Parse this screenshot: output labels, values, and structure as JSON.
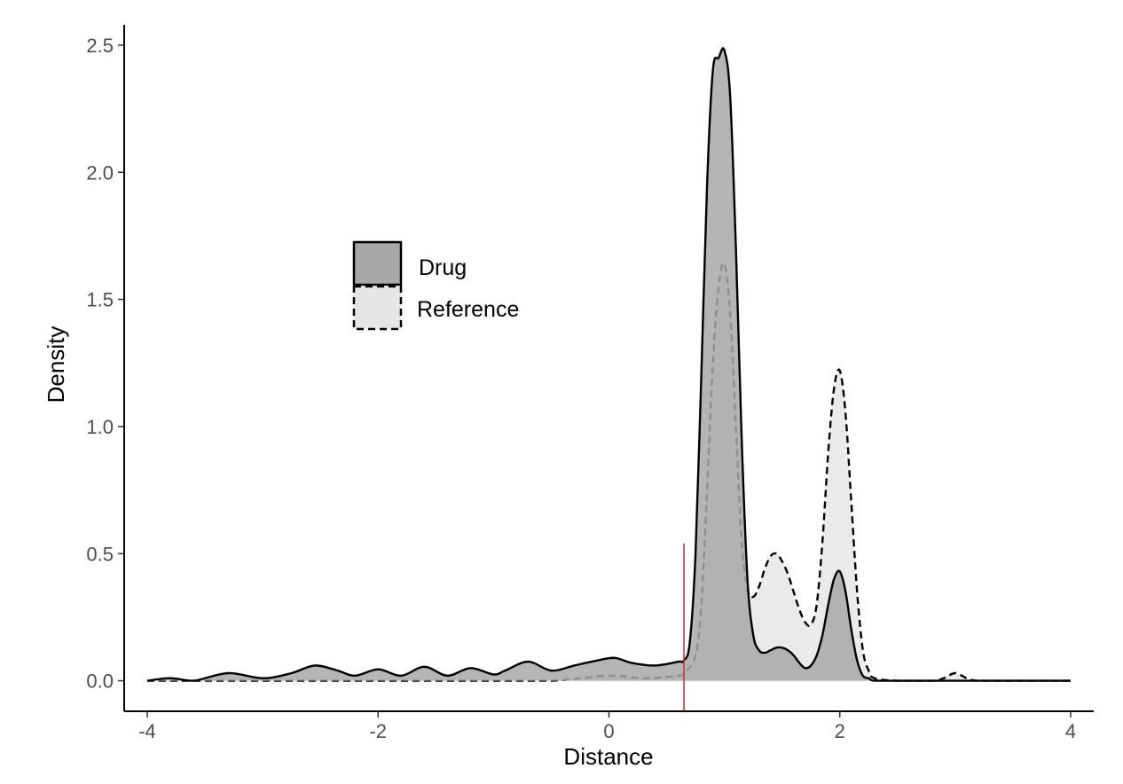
{
  "chart_data": {
    "type": "area",
    "title": "",
    "xlabel": "Distance",
    "ylabel": "Density",
    "xlim": [
      -4.2,
      4.2
    ],
    "ylim": [
      -0.12,
      2.58
    ],
    "xticks": [
      -4,
      -2,
      0,
      2,
      4
    ],
    "xtick_labels": [
      "-4",
      "-2",
      "0",
      "2",
      "4"
    ],
    "yticks": [
      0.0,
      0.5,
      1.0,
      1.5,
      2.0,
      2.5
    ],
    "ytick_labels": [
      "0.0",
      "0.5",
      "1.0",
      "1.5",
      "2.0",
      "2.5"
    ],
    "grid": false,
    "legend_position": "upper-left",
    "threshold": {
      "x": 0.65,
      "y_max": 0.54,
      "color": "#cc3333"
    },
    "series": [
      {
        "name": "Reference",
        "line_style": "dashed",
        "fill": "#e6e6e6",
        "x": [
          -4.0,
          -3.5,
          -3.0,
          -2.5,
          -2.0,
          -1.5,
          -1.0,
          -0.5,
          0.0,
          0.3,
          0.6,
          0.65,
          0.75,
          0.8,
          0.85,
          0.9,
          0.95,
          1.0,
          1.05,
          1.1,
          1.15,
          1.2,
          1.25,
          1.3,
          1.35,
          1.4,
          1.45,
          1.5,
          1.55,
          1.6,
          1.65,
          1.7,
          1.75,
          1.8,
          1.85,
          1.9,
          1.95,
          2.0,
          2.05,
          2.1,
          2.15,
          2.2,
          2.25,
          2.3,
          2.5,
          2.8,
          2.9,
          3.0,
          3.1,
          3.2,
          3.5,
          4.0
        ],
        "y": [
          0.0,
          0.0,
          0.0,
          0.0,
          0.0,
          0.0,
          0.0,
          0.0,
          0.02,
          0.01,
          0.02,
          0.03,
          0.1,
          0.3,
          0.75,
          1.25,
          1.55,
          1.64,
          1.45,
          1.0,
          0.55,
          0.36,
          0.33,
          0.37,
          0.44,
          0.49,
          0.5,
          0.47,
          0.42,
          0.35,
          0.28,
          0.23,
          0.22,
          0.3,
          0.55,
          0.9,
          1.15,
          1.22,
          1.05,
          0.7,
          0.35,
          0.12,
          0.04,
          0.01,
          0.0,
          0.0,
          0.01,
          0.03,
          0.01,
          0.0,
          0.0,
          0.0
        ]
      },
      {
        "name": "Drug",
        "line_style": "solid",
        "fill": "#a8a8a8",
        "x": [
          -4.0,
          -3.8,
          -3.6,
          -3.3,
          -3.0,
          -2.75,
          -2.55,
          -2.35,
          -2.2,
          -2.0,
          -1.8,
          -1.6,
          -1.4,
          -1.2,
          -1.0,
          -0.9,
          -0.7,
          -0.5,
          -0.3,
          -0.1,
          0.05,
          0.2,
          0.4,
          0.6,
          0.65,
          0.7,
          0.75,
          0.8,
          0.85,
          0.9,
          0.95,
          1.0,
          1.05,
          1.1,
          1.15,
          1.2,
          1.25,
          1.3,
          1.35,
          1.4,
          1.45,
          1.5,
          1.55,
          1.6,
          1.65,
          1.7,
          1.75,
          1.8,
          1.85,
          1.9,
          1.95,
          2.0,
          2.05,
          2.1,
          2.15,
          2.2,
          2.25,
          2.3,
          2.5,
          3.0,
          4.0
        ],
        "y": [
          0.0,
          0.01,
          0.0,
          0.03,
          0.01,
          0.03,
          0.06,
          0.04,
          0.02,
          0.045,
          0.02,
          0.055,
          0.02,
          0.05,
          0.025,
          0.04,
          0.075,
          0.04,
          0.06,
          0.08,
          0.09,
          0.07,
          0.06,
          0.075,
          0.08,
          0.15,
          0.5,
          1.2,
          1.95,
          2.4,
          2.45,
          2.48,
          2.3,
          1.7,
          0.95,
          0.4,
          0.18,
          0.12,
          0.11,
          0.12,
          0.13,
          0.13,
          0.12,
          0.1,
          0.07,
          0.05,
          0.06,
          0.1,
          0.18,
          0.3,
          0.4,
          0.43,
          0.35,
          0.2,
          0.08,
          0.02,
          0.01,
          0.0,
          0.0,
          0.0,
          0.0
        ]
      }
    ]
  }
}
